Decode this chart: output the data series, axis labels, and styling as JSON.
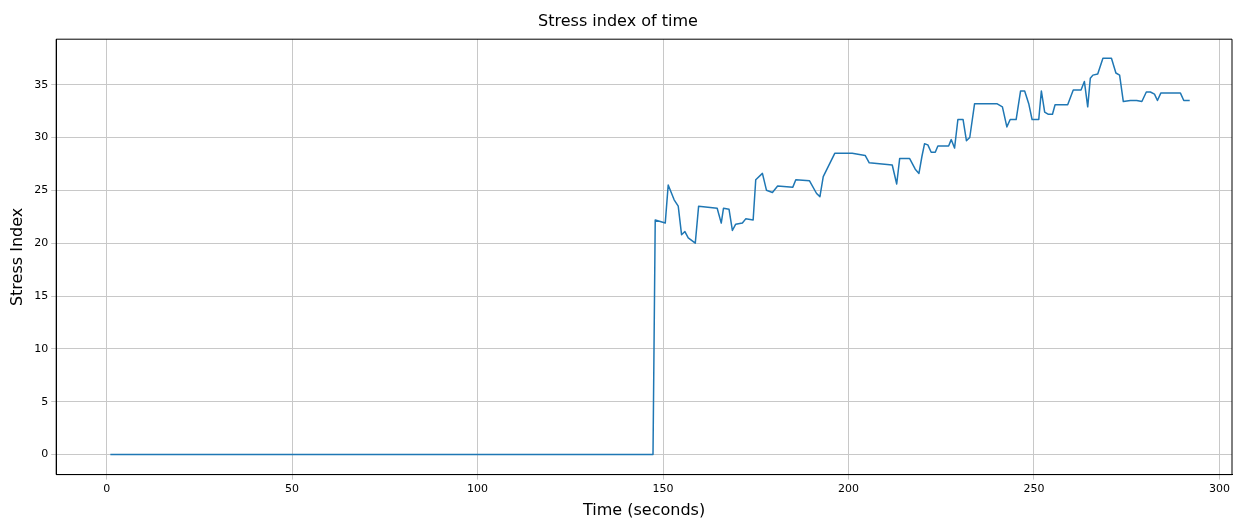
{
  "chart_data": {
    "type": "line",
    "title": "Stress index of time",
    "xlabel": "Time (seconds)",
    "ylabel": "Stress Index",
    "x": [
      1,
      147.3,
      147.9,
      150.6,
      151.4,
      153.0,
      154.1,
      155.0,
      155.9,
      156.8,
      158.7,
      159.6,
      164.6,
      165.7,
      166.3,
      167.8,
      168.7,
      169.6,
      171.4,
      172.3,
      174.3,
      175.0,
      176.8,
      177.9,
      179.5,
      180.9,
      185.0,
      185.8,
      189.5,
      191.4,
      192.3,
      193.2,
      196.3,
      201,
      204.5,
      205.6,
      211.8,
      213,
      213.8,
      216.5,
      218,
      219,
      219.8,
      220.5,
      221.4,
      222.3,
      223.4,
      224.1,
      227.0,
      227.7,
      228.6,
      229.5,
      230.9,
      231.8,
      232.7,
      234.0,
      240.0,
      241.5,
      242.7,
      243.6,
      245.2,
      246.4,
      247.5,
      248.6,
      249.5,
      251.3,
      252.0,
      252.9,
      253.8,
      255.0,
      255.7,
      259.1,
      260.6,
      262.7,
      263.6,
      264.5,
      265.2,
      265.9,
      267.2,
      268.6,
      270.9,
      272.1,
      273.1,
      274.1,
      276.0,
      277.7,
      279.1,
      280.3,
      281.4,
      282.5,
      283.3,
      284.2,
      289.5,
      290.4,
      292.0
    ],
    "series": [
      {
        "color": "#1f77b4",
        "values": [
          0,
          0,
          22.2,
          21.9,
          25.5,
          24.1,
          23.5,
          20.8,
          21.1,
          20.5,
          20.0,
          23.5,
          23.3,
          21.9,
          23.3,
          23.2,
          21.2,
          21.8,
          21.9,
          22.3,
          22.2,
          26.0,
          26.6,
          25.0,
          24.8,
          25.4,
          25.3,
          26.0,
          25.9,
          24.7,
          24.4,
          26.3,
          28.5,
          28.5,
          28.3,
          27.6,
          27.4,
          25.6,
          28.0,
          28.0,
          27.0,
          26.6,
          28.2,
          29.4,
          29.3,
          28.6,
          28.6,
          29.2,
          29.2,
          29.8,
          29.0,
          31.7,
          31.7,
          29.7,
          30.0,
          33.2,
          33.2,
          32.9,
          31.0,
          31.7,
          31.7,
          34.4,
          34.4,
          33.2,
          31.7,
          31.7,
          34.4,
          32.4,
          32.2,
          32.2,
          33.1,
          33.1,
          34.5,
          34.5,
          35.3,
          32.9,
          35.6,
          35.9,
          36.0,
          37.5,
          37.5,
          36.1,
          35.9,
          33.4,
          33.5,
          33.5,
          33.4,
          34.3,
          34.3,
          34.1,
          33.5,
          34.2,
          34.2,
          33.5,
          33.5
        ]
      }
    ],
    "xlim": [
      -13.6,
      303.4
    ],
    "ylim": [
      -1.9,
      39.3
    ],
    "xticks": [
      0,
      50,
      100,
      150,
      200,
      250,
      300
    ],
    "yticks": [
      0,
      5,
      10,
      15,
      20,
      25,
      30,
      35
    ],
    "grid": true,
    "legend": false,
    "marker": "none",
    "line_style": "solid"
  }
}
